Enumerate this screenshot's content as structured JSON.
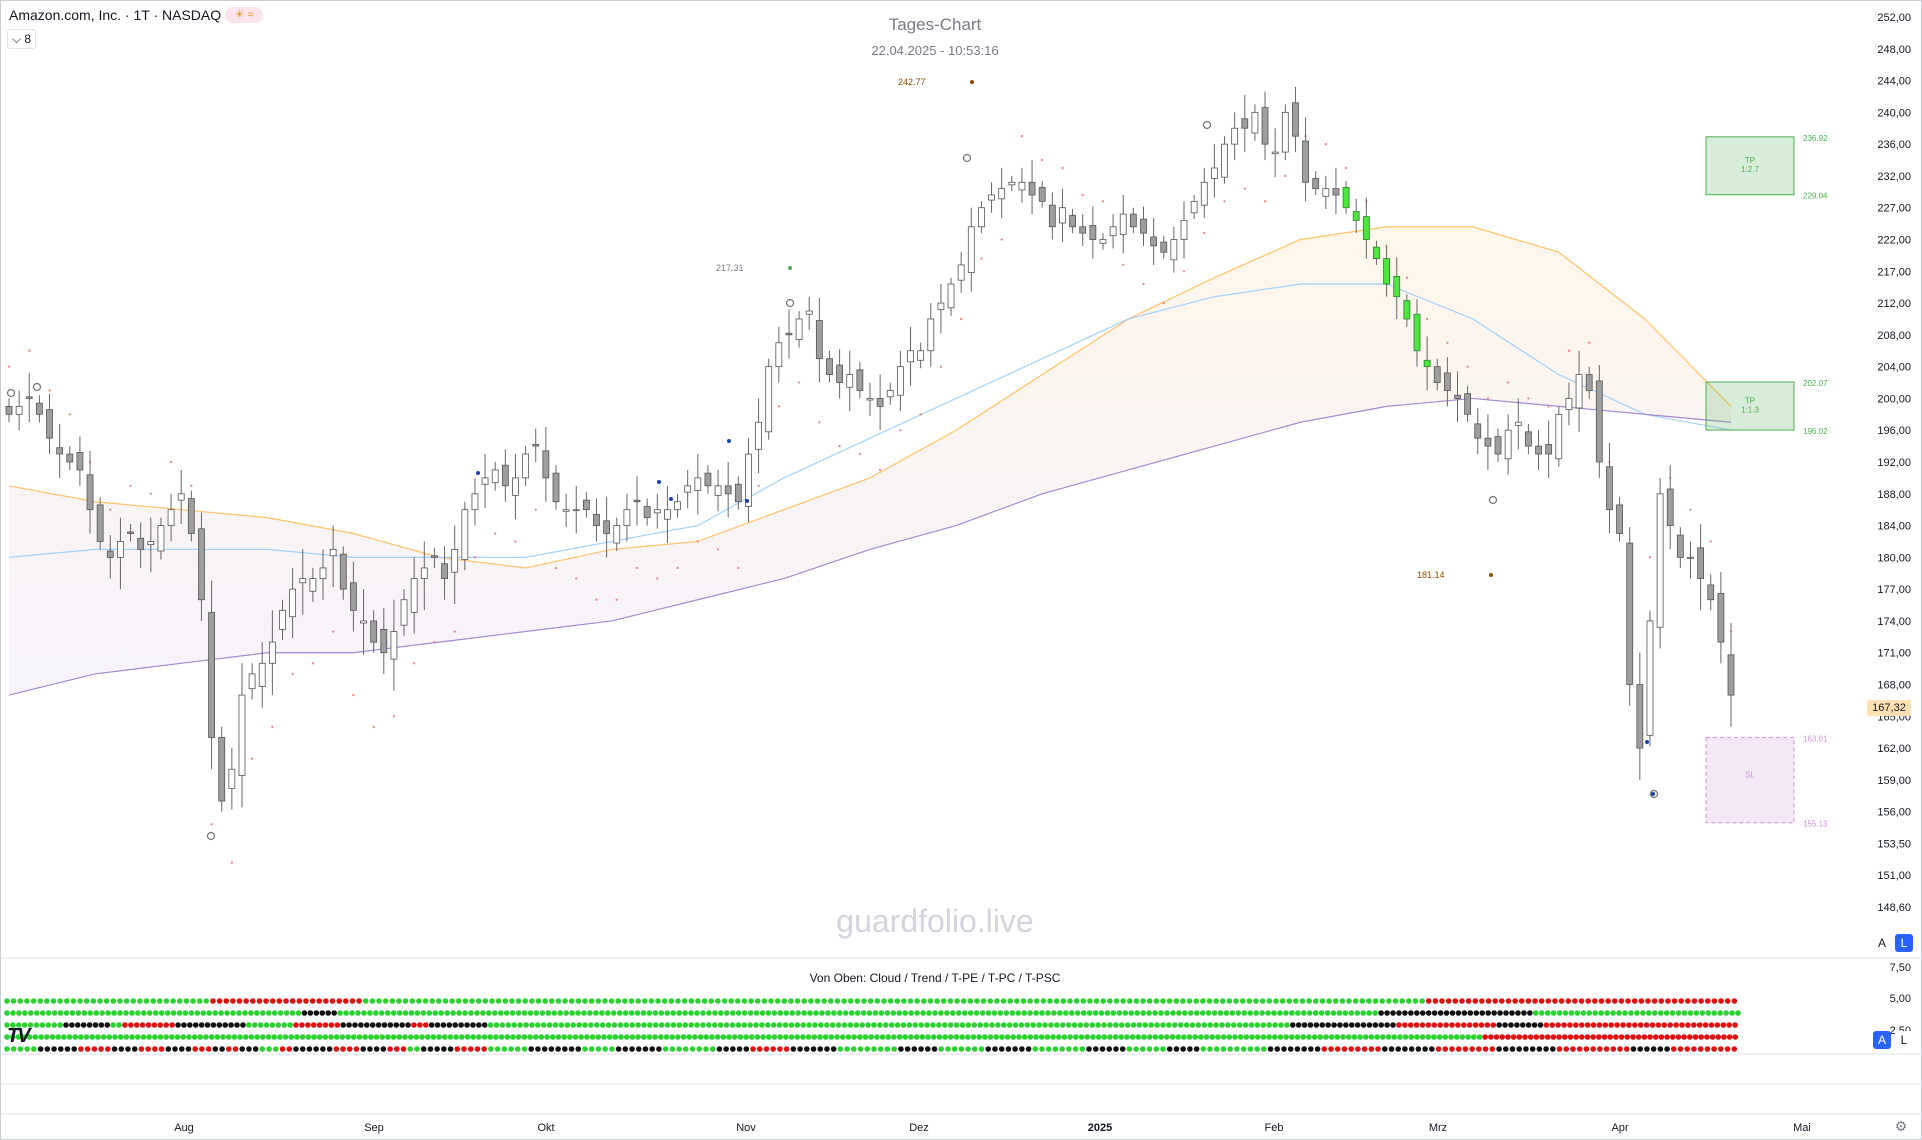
{
  "header": {
    "symbol_title": "Amazon.com, Inc. · 1T · NASDAQ",
    "collapse_label": "⌵ 8",
    "chart_title": "Tages-Chart",
    "chart_subtitle": "22.04.2025 - 10:53:16",
    "watermark": "guardfolio.live"
  },
  "price_axis": {
    "ticks": [
      {
        "label": "252,00",
        "v": 252
      },
      {
        "label": "248,00",
        "v": 248
      },
      {
        "label": "244,00",
        "v": 244
      },
      {
        "label": "240,00",
        "v": 240
      },
      {
        "label": "236,00",
        "v": 236
      },
      {
        "label": "232,00",
        "v": 232
      },
      {
        "label": "227,00",
        "v": 227
      },
      {
        "label": "222,00",
        "v": 222
      },
      {
        "label": "217,00",
        "v": 217
      },
      {
        "label": "212,00",
        "v": 212
      },
      {
        "label": "208,00",
        "v": 208
      },
      {
        "label": "204,00",
        "v": 204
      },
      {
        "label": "200,00",
        "v": 200
      },
      {
        "label": "196,00",
        "v": 196
      },
      {
        "label": "192,00",
        "v": 192
      },
      {
        "label": "188,00",
        "v": 188
      },
      {
        "label": "184,00",
        "v": 184
      },
      {
        "label": "180,00",
        "v": 180
      },
      {
        "label": "177,00",
        "v": 177
      },
      {
        "label": "174,00",
        "v": 174
      },
      {
        "label": "171,00",
        "v": 171
      },
      {
        "label": "168,00",
        "v": 168
      },
      {
        "label": "165,00",
        "v": 165
      },
      {
        "label": "162,00",
        "v": 162
      },
      {
        "label": "159,00",
        "v": 159
      },
      {
        "label": "156,00",
        "v": 156
      },
      {
        "label": "153,50",
        "v": 153.5
      },
      {
        "label": "151,00",
        "v": 151
      },
      {
        "label": "148,60",
        "v": 148.6
      }
    ],
    "last_price_label": "167,32",
    "last_price_color": "#ffe0b2",
    "scale_a": "A",
    "scale_l": "L"
  },
  "indicator": {
    "title": "Von Oben: Cloud / Trend / T-PE / T-PC / T-PSC",
    "axis_ticks": [
      {
        "label": "7,50",
        "v": 7.5
      },
      {
        "label": "5,00",
        "v": 5
      },
      {
        "label": "2,50",
        "v": 2.5
      }
    ],
    "scale_a": "A",
    "scale_l": "L",
    "row_names": [
      "Cloud",
      "Trend",
      "T-PE",
      "T-PC",
      "T-PSC"
    ],
    "dot_colors": {
      "g": "#2bd130",
      "r": "#e01010",
      "k": "#111111"
    },
    "rows": [
      "gggggggggggggggggggggggggggggggggggggggggggggggggggggggggggggrrrrrrrrrrrrrrrrrrrrrrrrrrrrrrrrrrrrrrrrrrrrrrggggggggggggggggggggggggggggggggggggggggggggggggggggggggggggggggggggggggggggggggggggggggggggggggggggggggggggggggggggggggggggggggggggggggggggggggggggggggggggggggggggggggggggggggggggggggggggggggggggggggggggggggggggggggggggggggggggggggggggggggggggggggggggggggggggggggggggggggggggggggggggggggggggggggggggggggggggggggggggggggrrrrrrrrrrrrrrrrrrrrrrrrrrrrrrrrrrrrrrrrrrrrrrrrrrrrrrrrrrrrrrrrrrrrrrrrrrrrrrrrrrrrrrrrrrrrrrr",
      "ggggggggggggggggggggggggggggggggggggggggggggggggggggggggggggggggggggggggggggggggggggggggggggggggggggkkkkkkkkkkkkgggggggggggggggggggggggggggggggggggggggggggggggggggggggggggggggggggggggggggggggggggggggggggggggggggggggggggggggggggggggggggggggggggggggggggggggggggggggggggggggggggggggggggggggggggggggggggggggggggggggggggggggggggggggggggggggggggggggggggggggggggggggggggggggggggggggggggggggggggggggggggggggggggggggggggggggggggggggggggggggggggggggggggggggggggggggggggggkkkkkkkkkkkkkkkkkkkkkkkkkkkkkkkkkkkkkkkkkkkkkkkkkkkkkggggggggggggggggggggggggggggggggggggggggggggggggggggggggggggggggggggg",
      "ggggggggggggggggggggkkkkkkkkkkkkkkkkgggrrrrrrrrrrrrrrrrrrrkkkkkkkkkkkkkkkkkkkkkkkggggggggggggggggrrrrrrrrrrrrrrrrkkkkkkkkkkkkkkkkkkkkkkkkrrrrrrrkkkkkkkkkkkkkkkkkkkkgggggggggggggggggggggggggggggggggggggggggggggggggggggggggggggggggggggggggggggggggggggggggggggggggggggggggggggggggggggggggggggggggggggggggggggggggggggggggggggggggggggggggggggggggggggggggggggggggggggggggggggggggggggggggggggggggggggggggggggggggggggggggggggggggggggggggggggggkkkkkkkkkkkkkkkkkkkkkkkkkkkkkkkkkkkkrrrrrrrrrrrrrrrrrrrrrrrrrrrrrrrrrrkkkkkkkkkkkkkkkkrrrrrrrrrrrrrrrrrrrrrrrrrrrrrrrrrrrrrrrrrrrrrrrrrrrrrrrrrrrrrrrrrrr",
      "gggggggggggggggggggggggggggggggggggggggggggggggggggggggggggggggggggggggggggggggggggggggggggggggggggggggggggggggggggggggggggggggggggggggggggggggggggggggggggggggggggggggggggggggggggggggggggggggggggggggggggggggggggggggggggggggggggggggggggggggggggggggggggggggggggggggggggggggggggggggggggggggggggggggggggggggggggggggggggggggggggggggggggggggggggggggggggggggggggggggggggggggggggggggggggggggggggggggggggggggggggggggggggggggggggggggggggggggggggggggggggggggggggggggggggggggggggggggggggggggggggggggggggggggggggggggggggggggggggggggrrrrrrrrrrrrrrrrrrrrrrrrrrrrrrrrrrrrrrrrrrrrrrrrrrrrrrrrrrrrrrrrrrrrrrrrrrrrrrrrrrrrrrrrrrr",
      "ggggggggggkkkkkkkkkkkkrrrrrrrrrkkkkkkkkrrrrrrrrkkkkkkkkrrrrrrkkkkrrrrkkkkkkggggggrrrrkkkkkkkkkkkkrrrrrrrrkkkkkkkkrrrrrrggggkkkkkkkkkkrrrrrrrrrrggggggggggggkkkkkkkkkkkkkkkkkggggggggggkkkkkkkkkkkkkgggggggggggggggggkkkkkkkkkkrrrrrrrrrrrkkkkkkkkkkkkkkggggggggggggggggggkkkkkkkkkkkkgggggggggggggggkkkkkkkkkkkkkkgggggggggggggggkkkkkkkkkkkkkggggggggggggkkkkkkkkkkggggggggggggggggggggkkkkkkkkkkkkkkkrrrrrrrrrrrrrrrrrrkkkkkkkkkkkkkkkkrrrrrrrrrrrrrrrrrrkkkkkkkkkkkkkkkkkkkrrrrrrrrrrrrrrrrrrrrrrkkkkkkkkkkkrrrrrrrrrrrrrrrrrrrrr"
    ]
  },
  "time_axis": {
    "labels": [
      {
        "label": "Aug",
        "bold": false
      },
      {
        "label": "Sep",
        "bold": false
      },
      {
        "label": "Okt",
        "bold": false
      },
      {
        "label": "Nov",
        "bold": false
      },
      {
        "label": "Dez",
        "bold": false
      },
      {
        "label": "2025",
        "bold": true
      },
      {
        "label": "Feb",
        "bold": false
      },
      {
        "label": "Mrz",
        "bold": false
      },
      {
        "label": "Apr",
        "bold": false
      },
      {
        "label": "Mai",
        "bold": false
      }
    ]
  },
  "annotations": {
    "high_marker": "242.77",
    "mid_marker": "217.31",
    "low_marker": "181.14",
    "tp_upper": {
      "label": "TP\n1:2.7",
      "top_price": "236.92",
      "bottom_price": "229.04"
    },
    "tp_lower": {
      "label": "TP\n1:1.3",
      "top_price": "202.07",
      "bottom_price": "196.02"
    },
    "stop_zone": {
      "label": "SL",
      "top_price": "163.01",
      "bottom_price": "155.13"
    },
    "tp_color": "#4caf50",
    "sl_color": "#ce93d8"
  },
  "chart_data": {
    "type": "candlestick",
    "title": "Tages-Chart",
    "subtitle": "22.04.2025 - 10:53:16",
    "symbol": "Amazon.com, Inc. · 1T · NASDAQ",
    "ylim": [
      147,
      253
    ],
    "x_labels": [
      "Aug",
      "Sep",
      "Okt",
      "Nov",
      "Dez",
      "2025",
      "Feb",
      "Mrz",
      "Apr",
      "Mai"
    ],
    "last_price": 167.32,
    "ohlc_close_approx": [
      198,
      199,
      200,
      198,
      195,
      193,
      192,
      191,
      186,
      182,
      180,
      182,
      183,
      181,
      182,
      184,
      186,
      188,
      183,
      176,
      163,
      157,
      160,
      167,
      169,
      170,
      172,
      175,
      177,
      178,
      178,
      179,
      181,
      177,
      175,
      174,
      172,
      171,
      173,
      176,
      178,
      179,
      180,
      178,
      181,
      186,
      188,
      190,
      191,
      189,
      190,
      193,
      194,
      190,
      187,
      186,
      186,
      186,
      184,
      183,
      184,
      186,
      187,
      185,
      186,
      186,
      187,
      189,
      190,
      189,
      189,
      188,
      187,
      193,
      197,
      204,
      207,
      208,
      210,
      211,
      205,
      203,
      202,
      203,
      201,
      200,
      199,
      201,
      204,
      206,
      206,
      210,
      212,
      215,
      218,
      224,
      227,
      229,
      230,
      231,
      231,
      229,
      228,
      224,
      227,
      224,
      223,
      222,
      222,
      224,
      226,
      224,
      223,
      221,
      220,
      222,
      225,
      228,
      231,
      233,
      236,
      238,
      238,
      240,
      236,
      235,
      240,
      237,
      231,
      230,
      230,
      229,
      227,
      225,
      222,
      219,
      215,
      213,
      210,
      206,
      204,
      202,
      201,
      200,
      198,
      195,
      194,
      193,
      196,
      197,
      194,
      193,
      193,
      198,
      200,
      203,
      201,
      192,
      186,
      183,
      168,
      162,
      174,
      188,
      184,
      180,
      180,
      178,
      176,
      172,
      167
    ],
    "series": [
      {
        "name": "EMA fast (orange)",
        "values": [
          189,
          187,
          186,
          185,
          183,
          180,
          179,
          181,
          182,
          186,
          190,
          196,
          203,
          210,
          216,
          222,
          224,
          224,
          220,
          210,
          199
        ]
      },
      {
        "name": "EMA mid (blue)",
        "values": [
          180,
          181,
          181,
          181,
          180,
          180,
          180,
          182,
          184,
          190,
          195,
          200,
          205,
          210,
          213,
          215,
          215,
          210,
          203,
          198,
          196
        ]
      },
      {
        "name": "EMA slow (purple)",
        "values": [
          167,
          169,
          170,
          171,
          171,
          172,
          173,
          174,
          176,
          178,
          181,
          184,
          188,
          191,
          194,
          197,
          199,
          200,
          199,
          198,
          197
        ]
      }
    ]
  }
}
